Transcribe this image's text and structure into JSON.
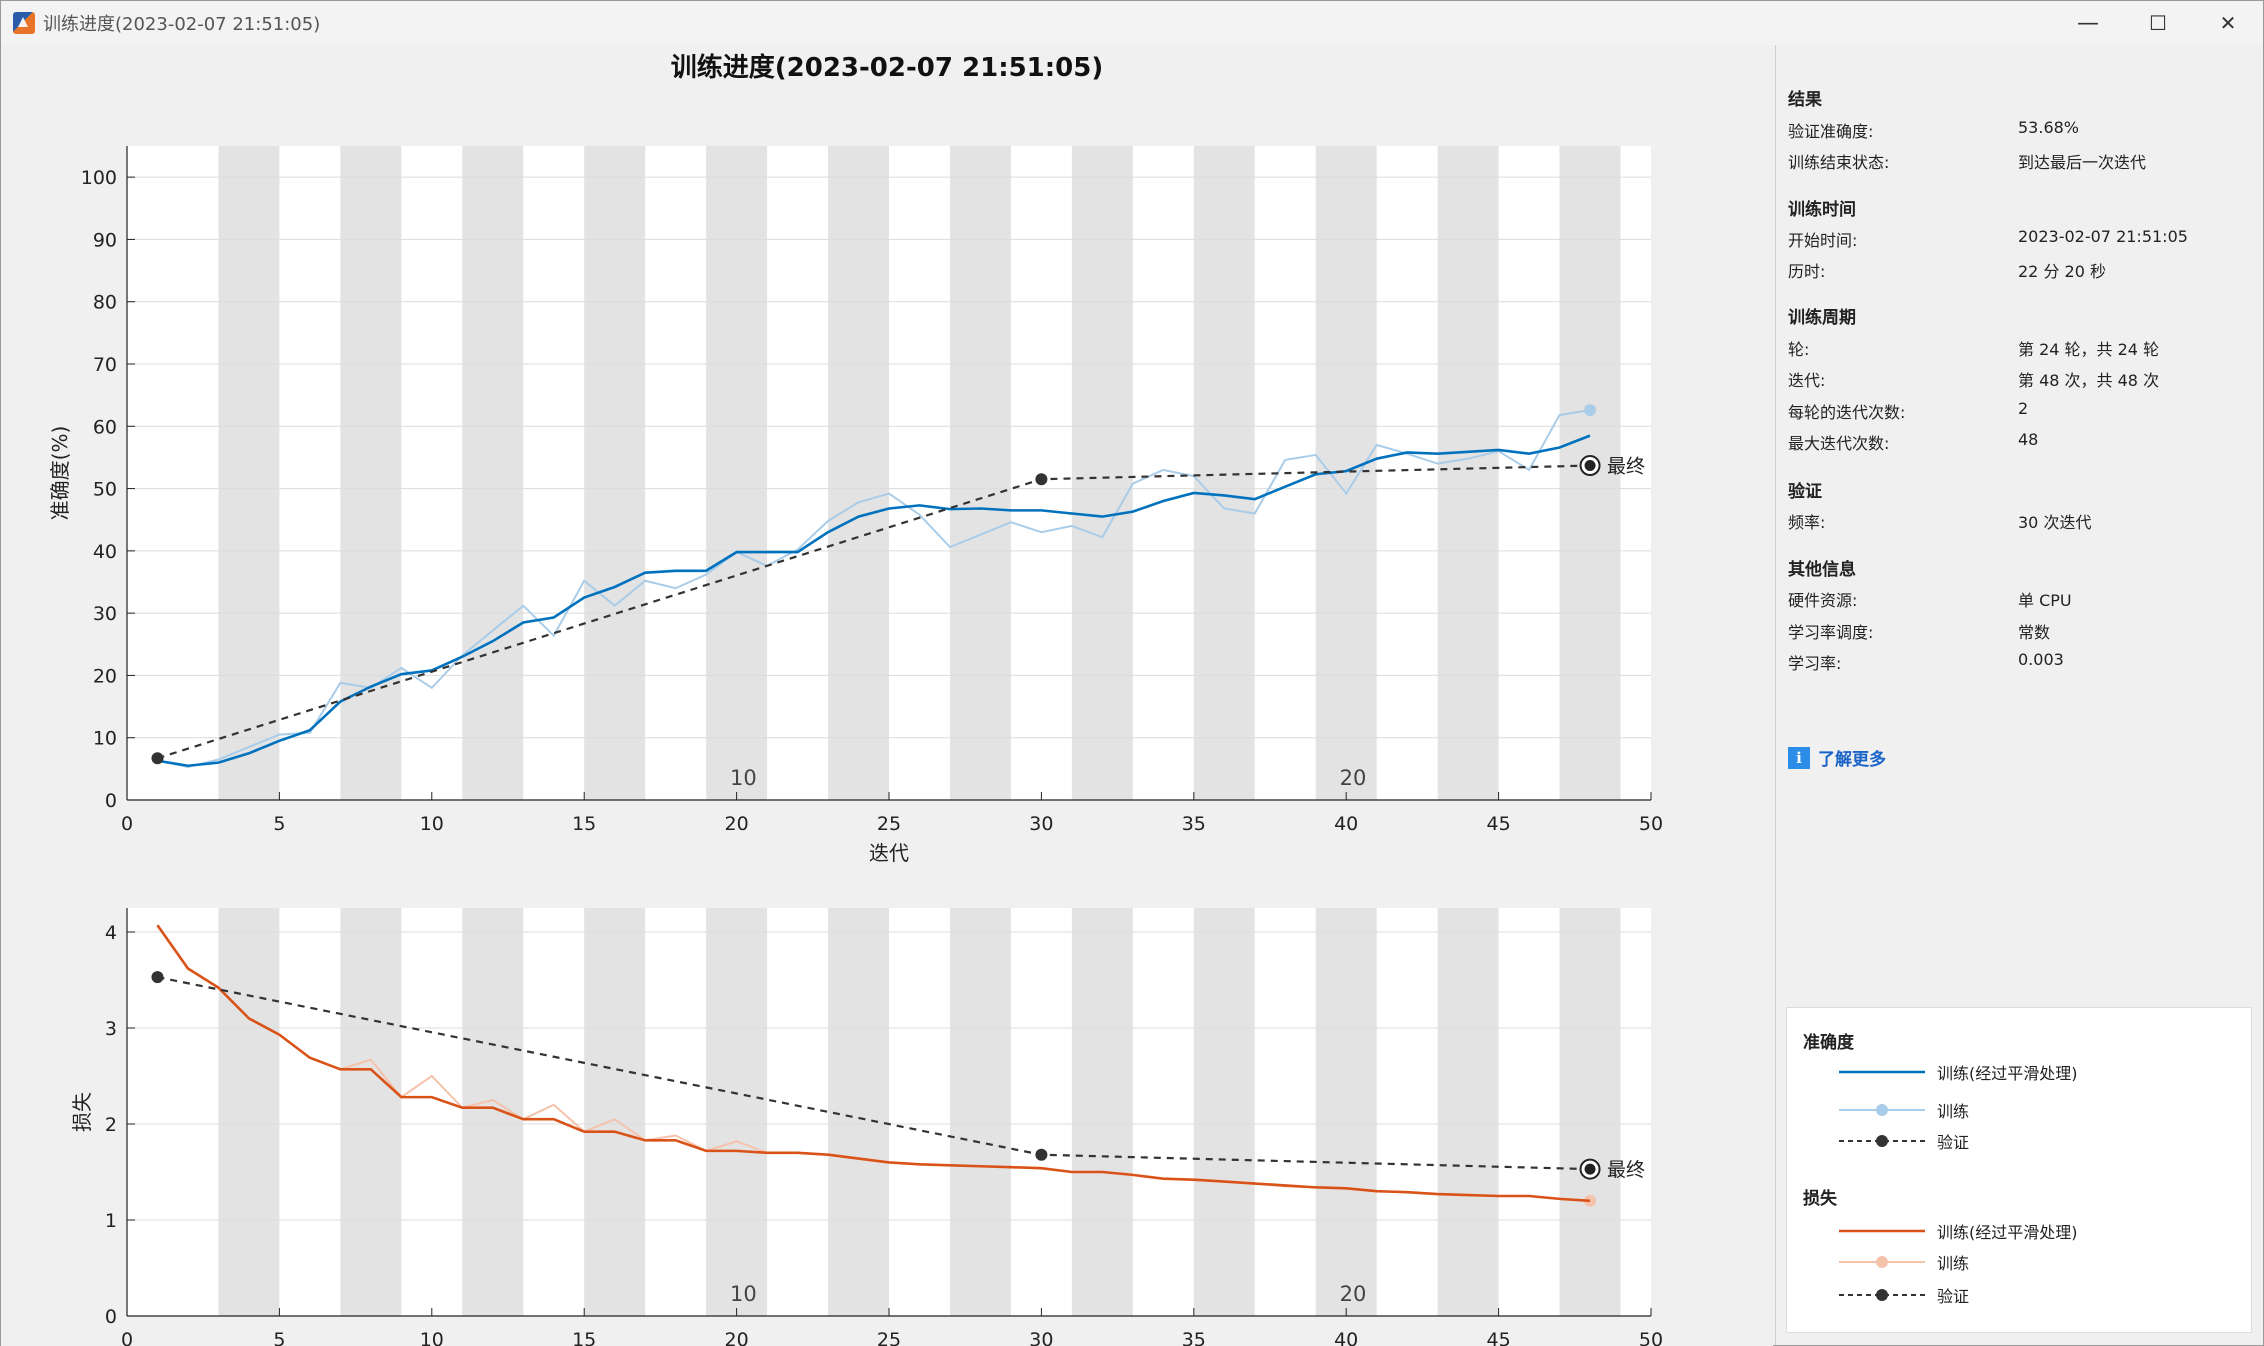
{
  "window": {
    "title": "训练进度(2023-02-07 21:51:05)",
    "minimize_glyph": "—",
    "maximize_glyph": "☐",
    "close_glyph": "✕"
  },
  "figure": {
    "title": "训练进度(2023-02-07 21:51:05)",
    "final_label": "最终"
  },
  "side_panel": {
    "results": {
      "heading": "结果",
      "rows": [
        {
          "label": "验证准确度:",
          "value": "53.68%"
        },
        {
          "label": "训练结束状态:",
          "value": "到达最后一次迭代"
        }
      ]
    },
    "training_time": {
      "heading": "训练时间",
      "rows": [
        {
          "label": "开始时间:",
          "value": "2023-02-07 21:51:05"
        },
        {
          "label": "历时:",
          "value": "22 分 20 秒"
        }
      ]
    },
    "training_cycle": {
      "heading": "训练周期",
      "rows": [
        {
          "label": "轮:",
          "value": "第 24 轮，共 24 轮"
        },
        {
          "label": "迭代:",
          "value": "第 48 次，共 48 次"
        },
        {
          "label": "每轮的迭代次数:",
          "value": "2"
        },
        {
          "label": "最大迭代次数:",
          "value": "48"
        }
      ]
    },
    "validation": {
      "heading": "验证",
      "rows": [
        {
          "label": "频率:",
          "value": "30 次迭代"
        }
      ]
    },
    "other_info": {
      "heading": "其他信息",
      "rows": [
        {
          "label": "硬件资源:",
          "value": "单 CPU"
        },
        {
          "label": "学习率调度:",
          "value": "常数"
        },
        {
          "label": "学习率:",
          "value": "0.003"
        }
      ]
    },
    "learn_more": "了解更多",
    "info_icon": "info-icon"
  },
  "legend": {
    "accuracy": {
      "heading": "准确度",
      "items": [
        "训练(经过平滑处理)",
        "训练",
        "验证"
      ]
    },
    "loss": {
      "heading": "损失",
      "items": [
        "训练(经过平滑处理)",
        "训练",
        "验证"
      ]
    }
  },
  "colors": {
    "acc_smoothed": "#0072bd",
    "acc_raw": "#a9cce8",
    "loss_smoothed": "#d95319",
    "loss_raw": "#f5c2ac",
    "validation": "#333333",
    "epoch_band": "#e3e3e3"
  },
  "chart_data": [
    {
      "type": "line",
      "title": "训练进度(2023-02-07 21:51:05)",
      "xlabel": "迭代",
      "ylabel": "准确度(%)",
      "xlim": [
        0,
        50
      ],
      "ylim": [
        0,
        105
      ],
      "xticks": [
        0,
        5,
        10,
        15,
        20,
        25,
        30,
        35,
        40,
        45,
        50
      ],
      "yticks": [
        0,
        10,
        20,
        30,
        40,
        50,
        60,
        70,
        80,
        90,
        100
      ],
      "epoch_labels": [
        {
          "x": 19.5,
          "text": "10"
        },
        {
          "x": 39.5,
          "text": "20"
        }
      ],
      "grid": true,
      "series": [
        {
          "name": "训练(经过平滑处理)",
          "x": [
            1,
            2,
            3,
            4,
            5,
            6,
            7,
            8,
            9,
            10,
            11,
            12,
            13,
            14,
            15,
            16,
            17,
            18,
            19,
            20,
            21,
            22,
            23,
            24,
            25,
            26,
            27,
            28,
            29,
            30,
            31,
            32,
            33,
            34,
            35,
            36,
            37,
            38,
            39,
            40,
            41,
            42,
            43,
            44,
            45,
            46,
            47,
            48
          ],
          "y": [
            6.3,
            5.5,
            6.0,
            7.5,
            9.5,
            11.2,
            15.8,
            18.2,
            20.2,
            20.8,
            23.0,
            25.5,
            28.5,
            29.3,
            32.5,
            34.2,
            36.5,
            36.8,
            36.8,
            39.8,
            39.8,
            39.8,
            43.0,
            45.5,
            46.8,
            47.3,
            46.7,
            46.8,
            46.5,
            46.5,
            46.0,
            45.5,
            46.3,
            48.0,
            49.3,
            48.9,
            48.3,
            50.3,
            52.3,
            52.8,
            54.8,
            55.8,
            55.6,
            55.9,
            56.2,
            55.6,
            56.6,
            58.5
          ]
        },
        {
          "name": "训练",
          "x": [
            1,
            2,
            3,
            4,
            5,
            6,
            7,
            8,
            9,
            10,
            11,
            12,
            13,
            14,
            15,
            16,
            17,
            18,
            19,
            20,
            21,
            22,
            23,
            24,
            25,
            26,
            27,
            28,
            29,
            30,
            31,
            32,
            33,
            34,
            35,
            36,
            37,
            38,
            39,
            40,
            41,
            42,
            43,
            44,
            45,
            46,
            47,
            48
          ],
          "y": [
            6.3,
            5.3,
            6.5,
            8.5,
            10.5,
            10.8,
            18.8,
            18.0,
            21.2,
            18.0,
            23.2,
            27.2,
            31.2,
            26.4,
            35.2,
            31.2,
            35.2,
            34.0,
            36.2,
            39.8,
            37.6,
            40.2,
            44.8,
            47.8,
            49.2,
            45.8,
            40.6,
            42.6,
            44.6,
            43.0,
            44.0,
            42.2,
            50.8,
            53.0,
            52.0,
            46.8,
            46.0,
            54.6,
            55.4,
            49.2,
            57.0,
            55.6,
            54.0,
            54.8,
            56.0,
            53.0,
            61.8,
            62.6
          ]
        },
        {
          "name": "验证",
          "x": [
            1,
            30,
            48
          ],
          "y": [
            6.7,
            51.5,
            53.7
          ]
        }
      ]
    },
    {
      "type": "line",
      "xlabel": "迭代",
      "ylabel": "损失",
      "xlim": [
        0,
        50
      ],
      "ylim": [
        0,
        4.25
      ],
      "xticks": [
        0,
        5,
        10,
        15,
        20,
        25,
        30,
        35,
        40,
        45,
        50
      ],
      "yticks": [
        0,
        1,
        2,
        3,
        4
      ],
      "epoch_labels": [
        {
          "x": 19.5,
          "text": "10"
        },
        {
          "x": 39.5,
          "text": "20"
        }
      ],
      "grid": true,
      "series": [
        {
          "name": "训练(经过平滑处理)",
          "x": [
            1,
            2,
            3,
            4,
            5,
            6,
            7,
            8,
            9,
            10,
            11,
            12,
            13,
            14,
            15,
            16,
            17,
            18,
            19,
            20,
            21,
            22,
            23,
            24,
            25,
            26,
            27,
            28,
            29,
            30,
            31,
            32,
            33,
            34,
            35,
            36,
            37,
            38,
            39,
            40,
            41,
            42,
            43,
            44,
            45,
            46,
            47,
            48
          ],
          "y": [
            4.07,
            3.62,
            3.42,
            3.1,
            2.93,
            2.69,
            2.57,
            2.57,
            2.28,
            2.28,
            2.17,
            2.17,
            2.05,
            2.05,
            1.92,
            1.92,
            1.83,
            1.83,
            1.72,
            1.72,
            1.7,
            1.7,
            1.68,
            1.64,
            1.6,
            1.58,
            1.57,
            1.56,
            1.55,
            1.54,
            1.5,
            1.5,
            1.47,
            1.43,
            1.42,
            1.4,
            1.38,
            1.36,
            1.34,
            1.33,
            1.3,
            1.29,
            1.27,
            1.26,
            1.25,
            1.25,
            1.22,
            1.2
          ]
        },
        {
          "name": "训练",
          "x": [
            1,
            2,
            3,
            4,
            5,
            6,
            7,
            8,
            9,
            10,
            11,
            12,
            13,
            14,
            15,
            16,
            17,
            18,
            19,
            20,
            21,
            22,
            23,
            24,
            25,
            26,
            27,
            28,
            29,
            30,
            31,
            32,
            33,
            34,
            35,
            36,
            37,
            38,
            39,
            40,
            41,
            42,
            43,
            44,
            45,
            46,
            47,
            48
          ],
          "y": [
            4.07,
            3.62,
            3.42,
            3.1,
            2.93,
            2.69,
            2.57,
            2.67,
            2.28,
            2.5,
            2.17,
            2.25,
            2.05,
            2.2,
            1.92,
            2.05,
            1.83,
            1.88,
            1.72,
            1.82,
            1.7,
            1.7,
            1.68,
            1.64,
            1.6,
            1.58,
            1.57,
            1.56,
            1.55,
            1.54,
            1.5,
            1.5,
            1.47,
            1.43,
            1.42,
            1.4,
            1.38,
            1.35,
            1.34,
            1.33,
            1.3,
            1.29,
            1.27,
            1.26,
            1.25,
            1.25,
            1.22,
            1.2
          ]
        },
        {
          "name": "验证",
          "x": [
            1,
            30,
            48
          ],
          "y": [
            3.53,
            1.68,
            1.53
          ]
        }
      ]
    }
  ]
}
